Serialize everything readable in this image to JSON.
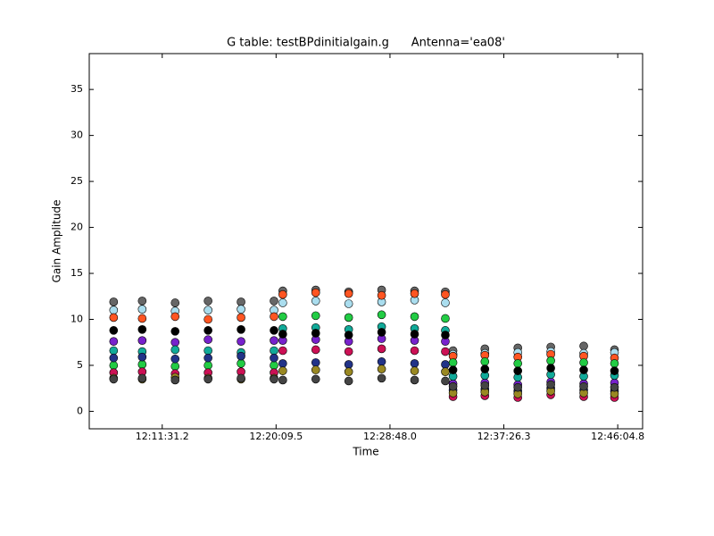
{
  "chart_data": {
    "type": "scatter",
    "title": "G table: testBPdinitialgain.g      Antenna='ea08'",
    "x_label": "Time",
    "y_label": "Gain Amplitude",
    "xlim": [
      43559,
      46078
    ],
    "ylim": [
      -1.9,
      38.9
    ],
    "xticks": [
      {
        "value": 43891.2,
        "label": "12:11:31.2"
      },
      {
        "value": 44409.5,
        "label": "12:20:09.5"
      },
      {
        "value": 44928.0,
        "label": "12:28:48.0"
      },
      {
        "value": 45446.3,
        "label": "12:37:26.3"
      },
      {
        "value": 45964.8,
        "label": "12:46:04.8"
      }
    ],
    "yticks": [
      0,
      5,
      10,
      15,
      20,
      25,
      30,
      35
    ],
    "grid": false,
    "x": [
      43670,
      43800,
      43950,
      44100,
      44250,
      44400,
      44440,
      44590,
      44740,
      44890,
      45040,
      45180,
      45215,
      45360,
      45510,
      45660,
      45810,
      45950
    ],
    "series": [
      {
        "color": "#666666",
        "values": [
          11.9,
          12.0,
          11.8,
          12.0,
          11.9,
          12.0,
          13.1,
          13.2,
          13.0,
          13.2,
          13.1,
          13.0,
          6.6,
          6.8,
          6.9,
          7.0,
          7.1,
          6.7
        ]
      },
      {
        "color": "#aaddee",
        "values": [
          11.0,
          11.1,
          10.9,
          11.0,
          11.1,
          11.0,
          11.8,
          12.0,
          11.7,
          11.9,
          12.1,
          11.8,
          6.2,
          6.3,
          6.4,
          6.5,
          6.3,
          6.4
        ]
      },
      {
        "color": "#ff5522",
        "values": [
          10.2,
          10.1,
          10.3,
          10.0,
          10.2,
          10.3,
          12.7,
          12.9,
          12.8,
          12.6,
          12.8,
          12.7,
          6.0,
          6.1,
          5.9,
          6.2,
          6.0,
          5.8
        ]
      },
      {
        "color": "#22cc44",
        "values": [
          5.0,
          5.1,
          4.9,
          5.0,
          5.2,
          5.0,
          10.3,
          10.4,
          10.2,
          10.5,
          10.3,
          10.1,
          5.3,
          5.4,
          5.2,
          5.5,
          5.3,
          5.2
        ]
      },
      {
        "color": "#7722cc",
        "values": [
          7.6,
          7.7,
          7.5,
          7.8,
          7.6,
          7.7,
          7.7,
          7.8,
          7.6,
          7.9,
          7.7,
          7.6,
          3.0,
          3.1,
          2.9,
          3.2,
          3.0,
          3.1
        ]
      },
      {
        "color": "#11aa99",
        "values": [
          6.6,
          6.5,
          6.7,
          6.6,
          6.4,
          6.6,
          9.0,
          9.1,
          8.9,
          9.2,
          9.0,
          8.8,
          3.8,
          3.9,
          3.7,
          4.0,
          3.8,
          3.9
        ]
      },
      {
        "color": "#000000",
        "values": [
          8.8,
          8.9,
          8.7,
          8.8,
          8.9,
          8.8,
          8.4,
          8.5,
          8.3,
          8.6,
          8.4,
          8.3,
          4.5,
          4.6,
          4.4,
          4.7,
          4.5,
          4.4
        ]
      },
      {
        "color": "#cc1155",
        "values": [
          4.2,
          4.3,
          4.1,
          4.2,
          4.3,
          4.2,
          6.6,
          6.7,
          6.5,
          6.8,
          6.6,
          6.5,
          1.6,
          1.7,
          1.5,
          1.8,
          1.6,
          1.5
        ]
      },
      {
        "color": "#223388",
        "values": [
          5.8,
          5.9,
          5.7,
          5.8,
          6.0,
          5.8,
          5.2,
          5.3,
          5.1,
          5.4,
          5.2,
          5.1,
          2.3,
          2.4,
          2.2,
          2.5,
          2.3,
          2.2
        ]
      },
      {
        "color": "#998822",
        "values": [
          3.6,
          3.5,
          3.7,
          3.6,
          3.5,
          3.6,
          4.4,
          4.5,
          4.3,
          4.6,
          4.4,
          4.3,
          2.0,
          2.1,
          1.9,
          2.2,
          2.0,
          1.9
        ]
      },
      {
        "color": "#444444",
        "values": [
          3.5,
          3.6,
          3.4,
          3.5,
          3.6,
          3.5,
          3.4,
          3.5,
          3.3,
          3.6,
          3.4,
          3.3,
          2.7,
          2.8,
          2.6,
          2.9,
          2.7,
          2.6
        ]
      }
    ]
  }
}
